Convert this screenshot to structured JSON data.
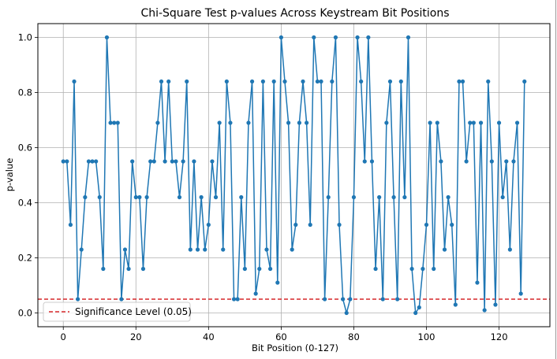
{
  "chart_data": {
    "type": "line",
    "title": "Chi-Square Test p-values Across Keystream Bit Positions",
    "xlabel": "Bit Position (0-127)",
    "ylabel": "p-value",
    "xlim": [
      -7,
      134
    ],
    "ylim": [
      -0.05,
      1.05
    ],
    "xticks": [
      0,
      20,
      40,
      60,
      80,
      100,
      120
    ],
    "yticks": [
      0.0,
      0.2,
      0.4,
      0.6,
      0.8,
      1.0
    ],
    "xtick_labels": [
      "0",
      "20",
      "40",
      "60",
      "80",
      "100",
      "120"
    ],
    "ytick_labels": [
      "0.0",
      "0.2",
      "0.4",
      "0.6",
      "0.8",
      "1.0"
    ],
    "grid": true,
    "legend_position": "lower-left",
    "series": [
      {
        "color": "#1f77b4",
        "x": [
          0,
          1,
          2,
          3,
          4,
          5,
          6,
          7,
          8,
          9,
          10,
          11,
          12,
          13,
          14,
          15,
          16,
          17,
          18,
          19,
          20,
          21,
          22,
          23,
          24,
          25,
          26,
          27,
          28,
          29,
          30,
          31,
          32,
          33,
          34,
          35,
          36,
          37,
          38,
          39,
          40,
          41,
          42,
          43,
          44,
          45,
          46,
          47,
          48,
          49,
          50,
          51,
          52,
          53,
          54,
          55,
          56,
          57,
          58,
          59,
          60,
          61,
          62,
          63,
          64,
          65,
          66,
          67,
          68,
          69,
          70,
          71,
          72,
          73,
          74,
          75,
          76,
          77,
          78,
          79,
          80,
          81,
          82,
          83,
          84,
          85,
          86,
          87,
          88,
          89,
          90,
          91,
          92,
          93,
          94,
          95,
          96,
          97,
          98,
          99,
          100,
          101,
          102,
          103,
          104,
          105,
          106,
          107,
          108,
          109,
          110,
          111,
          112,
          113,
          114,
          115,
          116,
          117,
          118,
          119,
          120,
          121,
          122,
          123,
          124,
          125,
          126,
          127
        ],
        "values": [
          0.55,
          0.55,
          0.32,
          0.84,
          0.05,
          0.23,
          0.42,
          0.55,
          0.55,
          0.55,
          0.42,
          0.16,
          1.0,
          0.69,
          0.69,
          0.69,
          0.05,
          0.23,
          0.16,
          0.55,
          0.42,
          0.42,
          0.16,
          0.42,
          0.55,
          0.55,
          0.69,
          0.84,
          0.55,
          0.84,
          0.55,
          0.55,
          0.42,
          0.55,
          0.84,
          0.23,
          0.55,
          0.23,
          0.42,
          0.23,
          0.32,
          0.55,
          0.42,
          0.69,
          0.23,
          0.84,
          0.69,
          0.05,
          0.05,
          0.42,
          0.16,
          0.69,
          0.84,
          0.07,
          0.16,
          0.84,
          0.23,
          0.16,
          0.84,
          0.11,
          1.0,
          0.84,
          0.69,
          0.23,
          0.32,
          0.69,
          0.84,
          0.69,
          0.32,
          1.0,
          0.84,
          0.84,
          0.05,
          0.42,
          0.84,
          1.0,
          0.32,
          0.05,
          0.0,
          0.05,
          0.42,
          1.0,
          0.84,
          0.55,
          1.0,
          0.55,
          0.16,
          0.42,
          0.05,
          0.69,
          0.84,
          0.42,
          0.05,
          0.84,
          0.42,
          1.0,
          0.16,
          0.0,
          0.02,
          0.16,
          0.32,
          0.69,
          0.16,
          0.69,
          0.55,
          0.23,
          0.42,
          0.32,
          0.03,
          0.84,
          0.84,
          0.55,
          0.69,
          0.69,
          0.11,
          0.69,
          0.01,
          0.84,
          0.55,
          0.03,
          0.69,
          0.42,
          0.55,
          0.23,
          0.55,
          0.69,
          0.07,
          0.84
        ]
      }
    ],
    "threshold": {
      "value": 0.05,
      "label": "Significance Level (0.05)",
      "color": "#d62728",
      "style": "dashed"
    }
  }
}
